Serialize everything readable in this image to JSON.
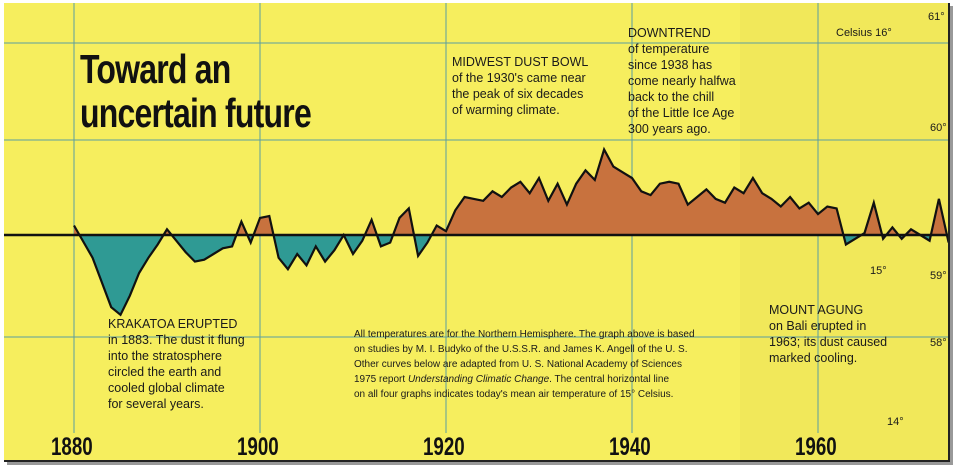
{
  "title_lines": [
    "Toward an",
    "uncertain future"
  ],
  "annotations": {
    "krakatoa": {
      "heading": "KRAKATOA ERUPTED",
      "lines": [
        "in 1883. The dust it flung",
        "into the stratosphere",
        "circled the earth and",
        "cooled global climate",
        "for several years."
      ]
    },
    "dust_bowl": {
      "heading": "MIDWEST DUST BOWL",
      "lines": [
        "of the 1930's came near",
        "the peak of six decades",
        "of warming climate."
      ]
    },
    "downtrend": {
      "heading": "DOWNTREND",
      "lines": [
        "of temperature",
        "since 1938 has",
        "come nearly halfwa",
        "back to the chill",
        "of the Little Ice Age",
        "300 years ago."
      ]
    },
    "agung": {
      "heading": "MOUNT AGUNG",
      "lines": [
        "on Bali erupted in",
        "1963; its dust caused",
        "marked cooling."
      ]
    }
  },
  "note": {
    "lines": [
      "All temperatures are for the Northern Hemisphere. The graph above is based",
      "on studies by M. I. Budyko of the U.S.S.R. and James K. Angell of the U. S.",
      "Other curves below are adapted from U. S. National Academy of Sciences"
    ],
    "line4_pre": "1975 report ",
    "line4_italic": "Understanding Climatic Change",
    "line4_post": ". The central horizontal line",
    "line5": "on all four graphs indicates today's mean air temperature of 15° Celsius."
  },
  "scale": {
    "celsius_label": "Celsius 16°",
    "c15": "15°",
    "c14": "14°",
    "f_ticks": [
      "61°",
      "60°",
      "59°",
      "58°"
    ]
  },
  "colors": {
    "background": "#f6ee5e",
    "above": "#c8723e",
    "below": "#2f9a94",
    "bar": "#e9572f",
    "line": "#111111",
    "grid": "#5a9ea0"
  },
  "chart_data": {
    "type": "area",
    "title": "Toward an uncertain future",
    "xlabel": "",
    "ylabel": "",
    "baseline_c": 15,
    "x_ticks": [
      1880,
      1900,
      1920,
      1940,
      1960,
      1976
    ],
    "xlim": [
      1880,
      1976
    ],
    "ylim_c": [
      14,
      16
    ],
    "series": [
      {
        "x": [
          1880,
          1882,
          1883,
          1884,
          1885,
          1886,
          1887,
          1888,
          1889,
          1890,
          1891,
          1892,
          1893,
          1894,
          1895,
          1896,
          1897,
          1898,
          1899,
          1900,
          1901,
          1902,
          1903,
          1904,
          1905,
          1906,
          1907,
          1908,
          1909,
          1910,
          1911,
          1912,
          1913,
          1914,
          1915,
          1916,
          1917,
          1918,
          1919,
          1920,
          1921,
          1922,
          1923,
          1924,
          1925,
          1926,
          1927,
          1928,
          1929,
          1930,
          1931,
          1932,
          1933,
          1934,
          1935,
          1936,
          1937,
          1938,
          1939,
          1940,
          1941,
          1942,
          1943,
          1944,
          1945,
          1946,
          1947,
          1948,
          1949,
          1950,
          1951,
          1952,
          1953,
          1954,
          1955,
          1956,
          1957,
          1958,
          1959,
          1960,
          1961,
          1962,
          1963,
          1964,
          1965,
          1966,
          1967,
          1968,
          1969,
          1970,
          1971,
          1972,
          1973,
          1974,
          1975
        ],
        "y": [
          15.05,
          14.88,
          14.75,
          14.62,
          14.58,
          14.68,
          14.8,
          14.88,
          14.95,
          15.03,
          14.97,
          14.91,
          14.86,
          14.87,
          14.9,
          14.93,
          14.94,
          15.07,
          14.96,
          15.09,
          15.1,
          14.88,
          14.82,
          14.9,
          14.84,
          14.94,
          14.86,
          14.92,
          15.0,
          14.9,
          14.97,
          15.08,
          14.94,
          14.96,
          15.09,
          15.14,
          14.89,
          14.96,
          15.05,
          15.02,
          15.13,
          15.2,
          15.19,
          15.18,
          15.23,
          15.2,
          15.25,
          15.28,
          15.22,
          15.3,
          15.18,
          15.27,
          15.16,
          15.27,
          15.34,
          15.29,
          15.45,
          15.36,
          15.33,
          15.3,
          15.23,
          15.21,
          15.27,
          15.28,
          15.27,
          15.16,
          15.2,
          15.24,
          15.19,
          15.17,
          15.25,
          15.22,
          15.3,
          15.22,
          15.19,
          15.15,
          15.2,
          15.14,
          15.17,
          15.11,
          15.15,
          15.14,
          14.95,
          14.98,
          15.01,
          15.17,
          14.98,
          15.04,
          14.98,
          15.03,
          15.0,
          14.97,
          15.19,
          14.97,
          15.02
        ]
      }
    ]
  }
}
